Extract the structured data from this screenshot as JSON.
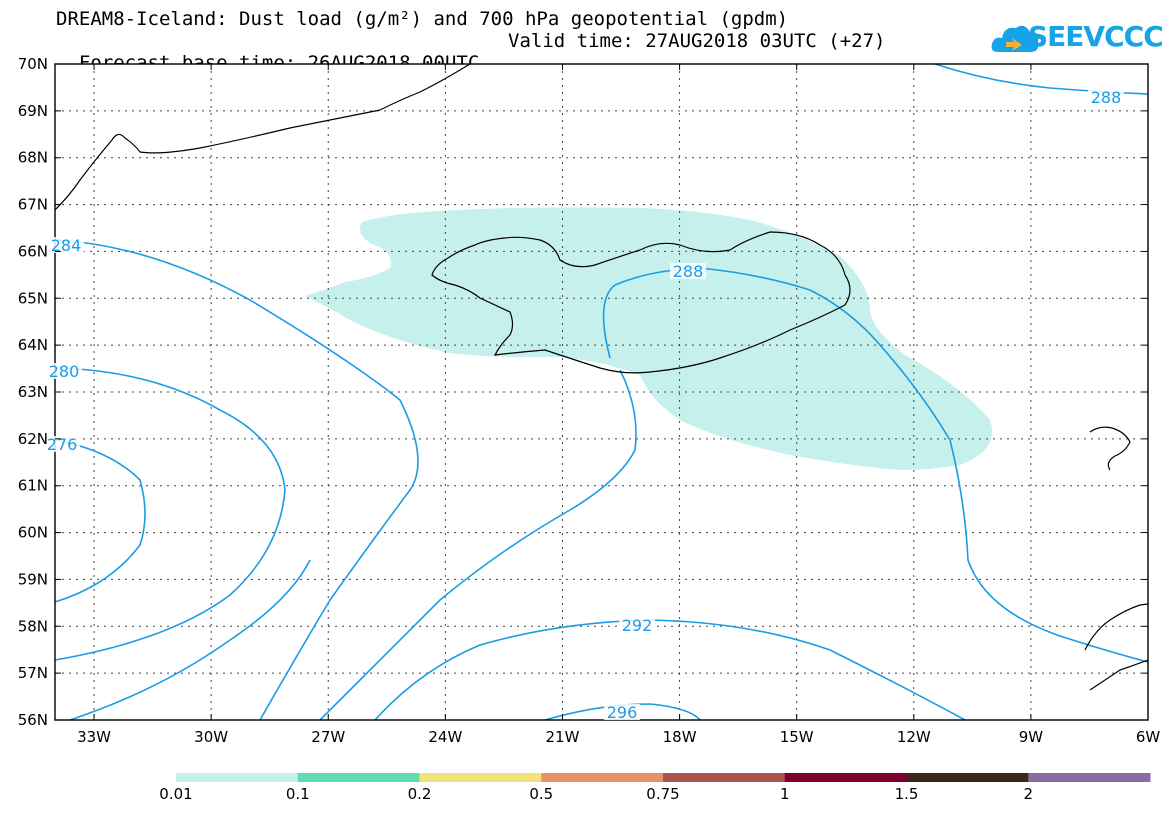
{
  "header": {
    "title_line1": "DREAM8-Iceland: Dust load (g/m²) and 700 hPa geopotential (gpdm)",
    "forecast_base": "Forecast base time: 26AUG2018 00UTC",
    "valid_time": "Valid time: 27AUG2018 03UTC (+27)"
  },
  "logo": {
    "text": "SEEVCCC",
    "color": "#17a3e8",
    "icon": "cloud-icon"
  },
  "map": {
    "lat_labels": [
      "70N",
      "69N",
      "68N",
      "67N",
      "66N",
      "65N",
      "64N",
      "63N",
      "62N",
      "61N",
      "60N",
      "59N",
      "58N",
      "57N",
      "56N"
    ],
    "lon_labels": [
      "33W",
      "30W",
      "27W",
      "24W",
      "21W",
      "18W",
      "15W",
      "12W",
      "9W",
      "6W"
    ],
    "lat_range": [
      56,
      70
    ],
    "lon_range": [
      -34,
      -6
    ],
    "dust_fill_color": "#c6f0eb",
    "contour_color": "#1a9ce6",
    "contour_labels": [
      "288",
      "288",
      "284",
      "280",
      "276",
      "292",
      "296"
    ]
  },
  "colorbar": {
    "colors": [
      "#c6f0eb",
      "#5fdcb0",
      "#f2e27a",
      "#e89068",
      "#a8564e",
      "#800030",
      "#3b2818",
      "#8e6b9e"
    ],
    "labels": [
      "0.01",
      "0.1",
      "0.2",
      "0.5",
      "0.75",
      "1",
      "1.5",
      "2"
    ]
  }
}
